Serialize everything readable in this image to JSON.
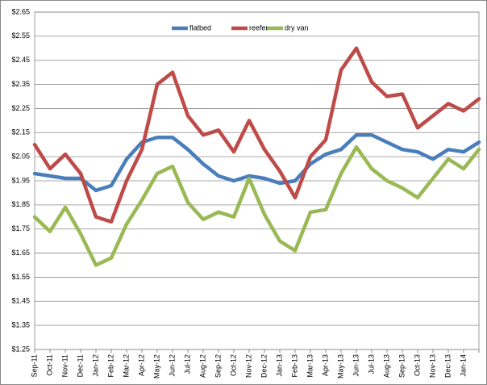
{
  "chart_data": {
    "type": "line",
    "categories": [
      "Sep-11",
      "Oct-11",
      "Nov-11",
      "Dec-11",
      "Jan-12",
      "Feb-12",
      "Mar-12",
      "Apr-12",
      "May-12",
      "Jun-12",
      "Jul-12",
      "Aug-12",
      "Sep-12",
      "Oct-12",
      "Nov-12",
      "Dec-12",
      "Jan-13",
      "Feb-13",
      "Mar-13",
      "Apr-13",
      "May-13",
      "Jun-13",
      "Jul-13",
      "Aug-13",
      "Sep-13",
      "Oct-13",
      "Nov-13",
      "Dec-13",
      "Jan-14",
      null
    ],
    "series": [
      {
        "name": "flatbed",
        "color": "#4a7ebb",
        "values": [
          1.98,
          1.97,
          1.96,
          1.96,
          1.91,
          1.93,
          2.04,
          2.11,
          2.13,
          2.13,
          2.08,
          2.02,
          1.97,
          1.95,
          1.97,
          1.96,
          1.94,
          1.95,
          2.02,
          2.06,
          2.08,
          2.14,
          2.14,
          2.11,
          2.08,
          2.07,
          2.04,
          2.08,
          2.07,
          2.11
        ]
      },
      {
        "name": "reefer",
        "color": "#be4b48",
        "values": [
          2.1,
          2.0,
          2.06,
          1.98,
          1.8,
          1.78,
          1.95,
          2.08,
          2.35,
          2.4,
          2.22,
          2.14,
          2.16,
          2.07,
          2.2,
          2.08,
          1.99,
          1.88,
          2.05,
          2.12,
          2.41,
          2.5,
          2.36,
          2.3,
          2.31,
          2.17,
          2.22,
          2.27,
          2.24,
          2.29
        ]
      },
      {
        "name": "dry van",
        "color": "#98b954",
        "values": [
          1.8,
          1.74,
          1.84,
          1.73,
          1.6,
          1.63,
          1.77,
          1.87,
          1.98,
          2.01,
          1.86,
          1.79,
          1.82,
          1.8,
          1.96,
          1.81,
          1.7,
          1.66,
          1.82,
          1.83,
          1.98,
          2.09,
          2.0,
          1.95,
          1.92,
          1.88,
          1.96,
          2.04,
          2.0,
          2.08
        ]
      }
    ],
    "ylim": [
      1.25,
      2.65
    ],
    "yticks": [
      {
        "value": 1.25,
        "label": "$1.25"
      },
      {
        "value": 1.35,
        "label": "$1.35"
      },
      {
        "value": 1.45,
        "label": "$1.45"
      },
      {
        "value": 1.55,
        "label": "$1.55"
      },
      {
        "value": 1.65,
        "label": "$1.65"
      },
      {
        "value": 1.75,
        "label": "$1.75"
      },
      {
        "value": 1.85,
        "label": "$1.85"
      },
      {
        "value": 1.95,
        "label": "$1.95"
      },
      {
        "value": 2.05,
        "label": "$2.05"
      },
      {
        "value": 2.15,
        "label": "$2.15"
      },
      {
        "value": 2.25,
        "label": "$2.25"
      },
      {
        "value": 2.35,
        "label": "$2.35"
      },
      {
        "value": 2.45,
        "label": "$2.45"
      },
      {
        "value": 2.55,
        "label": "$2.55"
      },
      {
        "value": 2.65,
        "label": "$2.65"
      }
    ],
    "grid": true,
    "legend": "top"
  }
}
